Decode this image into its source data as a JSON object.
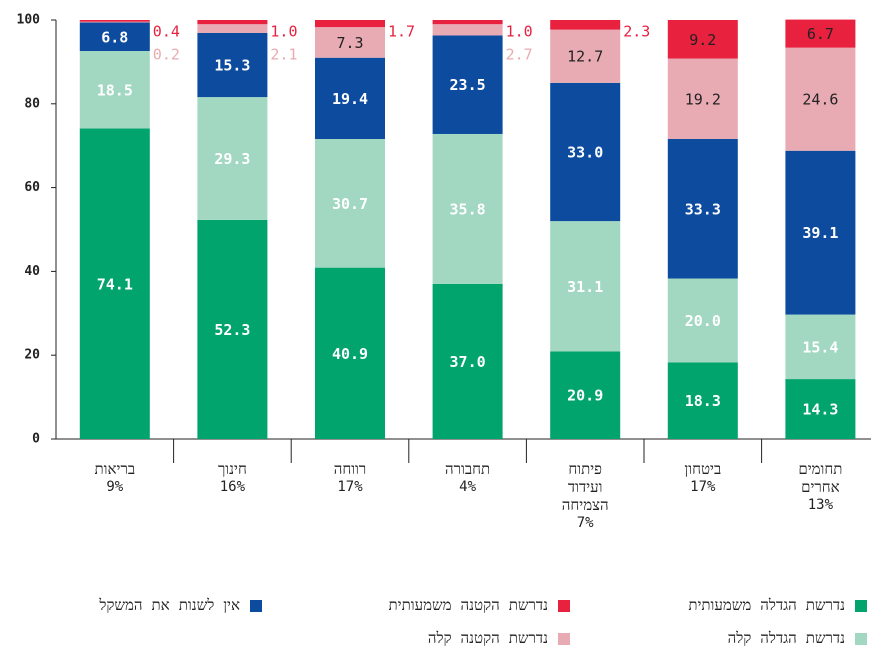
{
  "chart_data": {
    "type": "stacked_bar",
    "categories": [
      "בריאות",
      "חינוך",
      "רווחה",
      "תחבורה",
      "פיתוח ועידוד הצמיחה",
      "ביטחון",
      "תחומים אחרים"
    ],
    "category_shares": [
      "9%",
      "16%",
      "17%",
      "4%",
      "7%",
      "17%",
      "13%"
    ],
    "series": [
      {
        "name": "נדרשת הגדלה משמעותית",
        "color": "#00a46c",
        "values": [
          74.1,
          52.3,
          40.9,
          37.0,
          20.9,
          18.3,
          14.3
        ],
        "value_labels": [
          "74.1",
          "52.3",
          "40.9",
          "37.0",
          "20.9",
          "18.3",
          "14.3"
        ]
      },
      {
        "name": "נדרשת הגדלה קלה",
        "color": "#a2d8c2",
        "values": [
          18.5,
          29.3,
          30.7,
          35.8,
          31.1,
          20.0,
          15.4
        ],
        "value_labels": [
          "18.5",
          "29.3",
          "30.7",
          "35.8",
          "31.1",
          "20.0",
          "15.4"
        ]
      },
      {
        "name": "אין לשנות את המשקל",
        "color": "#0d4b9f",
        "values": [
          6.8,
          15.3,
          19.4,
          23.5,
          33.0,
          33.3,
          39.1
        ],
        "value_labels": [
          "6.8",
          "15.3",
          "19.4",
          "23.5",
          "33.0",
          "33.3",
          "39.1"
        ]
      },
      {
        "name": "נדרשת הקטנה קלה",
        "color": "#e8abb3",
        "values": [
          0.2,
          2.1,
          7.3,
          2.7,
          12.7,
          19.2,
          24.6
        ],
        "value_labels": [
          "0.2",
          "2.1",
          "7.3",
          "2.7",
          "12.7",
          "19.2",
          "24.6"
        ]
      },
      {
        "name": "נדרשת הקטנה משמעותית",
        "color": "#e8213f",
        "values": [
          0.4,
          1.0,
          1.7,
          1.0,
          2.3,
          9.2,
          6.7
        ],
        "value_labels": [
          "0.4",
          "1.0",
          "1.7",
          "1.0",
          "2.3",
          "9.2",
          "6.7"
        ]
      }
    ],
    "ylim": [
      0,
      100
    ],
    "yticks": [
      0,
      20,
      40,
      60,
      80,
      100
    ],
    "grid": false
  }
}
